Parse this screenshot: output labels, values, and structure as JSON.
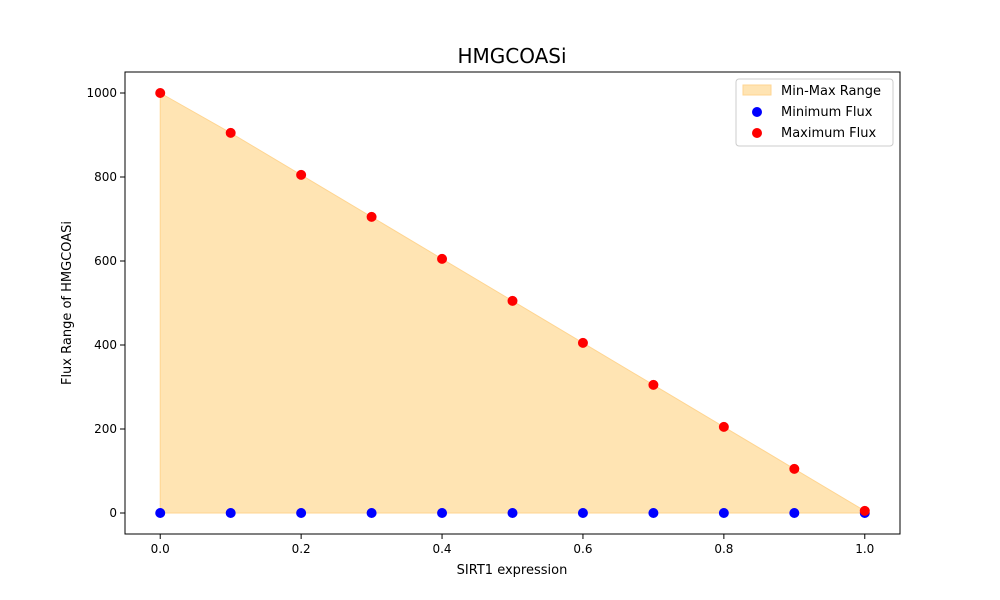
{
  "chart_data": {
    "type": "scatter",
    "title": "HMGCOASi",
    "xlabel": "SIRT1 expression",
    "ylabel": "Flux Range of HMGCOASi",
    "xlim": [
      -0.05,
      1.05
    ],
    "ylim": [
      -50,
      1050
    ],
    "xticks": [
      "0.0",
      "0.2",
      "0.4",
      "0.6",
      "0.8",
      "1.0"
    ],
    "yticks": [
      "0",
      "200",
      "400",
      "600",
      "800",
      "1000"
    ],
    "grid": false,
    "legend_position": "top-right",
    "x": [
      0.0,
      0.1,
      0.2,
      0.3,
      0.4,
      0.5,
      0.6,
      0.7,
      0.8,
      0.9,
      1.0
    ],
    "range_fill": {
      "name": "Min-Max Range",
      "color": "#ffe4b3",
      "edge_color": "#ffd591"
    },
    "series": [
      {
        "name": "Minimum Flux",
        "color": "#0000ff",
        "values": [
          0,
          0,
          0,
          0,
          0,
          0,
          0,
          0,
          0,
          0,
          0
        ]
      },
      {
        "name": "Maximum Flux",
        "color": "#ff0000",
        "values": [
          1000,
          905,
          805,
          705,
          605,
          505,
          405,
          305,
          205,
          105,
          5
        ]
      }
    ]
  }
}
